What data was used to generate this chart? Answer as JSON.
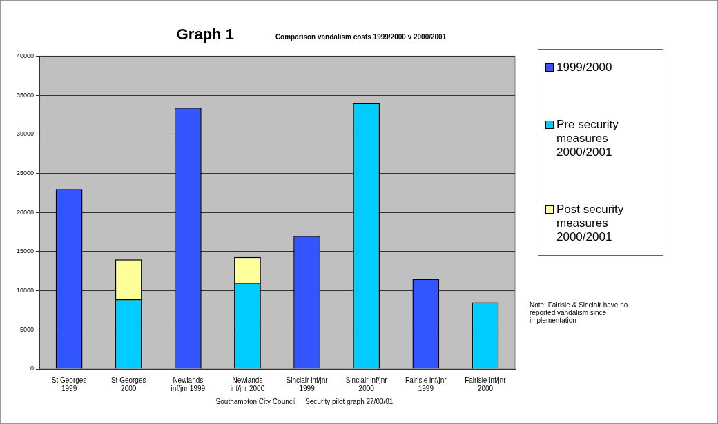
{
  "chart_data": {
    "type": "bar",
    "title": "Graph 1",
    "subtitle": "Comparison vandalism costs 1999/2000 v 2000/2001",
    "categories": [
      "St Georges\n1999",
      "St Georges\n2000",
      "Newlands\ninf/jnr 1999",
      "Newlands\ninf/jnr 2000",
      "Sinclair inf/jnr\n1999",
      "Sinclair inf/jnr\n2000",
      "Fairisle inf/jnr\n1999",
      "Fairisle inf/jnr\n2000"
    ],
    "series": [
      {
        "name": "1999/2000",
        "color": "#3355ff",
        "values": [
          23000,
          null,
          33400,
          null,
          17000,
          null,
          11500,
          null
        ]
      },
      {
        "name": "Pre security measures 2000/2001",
        "color": "#00ccff",
        "values": [
          null,
          8900,
          null,
          11000,
          null,
          34000,
          null,
          8500
        ]
      },
      {
        "name": "Post security measures 2000/2001",
        "color": "#ffff99",
        "values": [
          null,
          5100,
          null,
          3300,
          null,
          null,
          null,
          null
        ]
      }
    ],
    "stacked": true,
    "ylim": [
      0,
      40000
    ],
    "yticks": [
      0,
      5000,
      10000,
      15000,
      20000,
      25000,
      30000,
      35000,
      40000
    ],
    "grid": "y",
    "legend": "right",
    "annotations": [
      "Note: Fairisle & Sinclair have no reported vandalism since implementation",
      "Southampton City Council     Security pilot graph 27/03/01"
    ]
  }
}
